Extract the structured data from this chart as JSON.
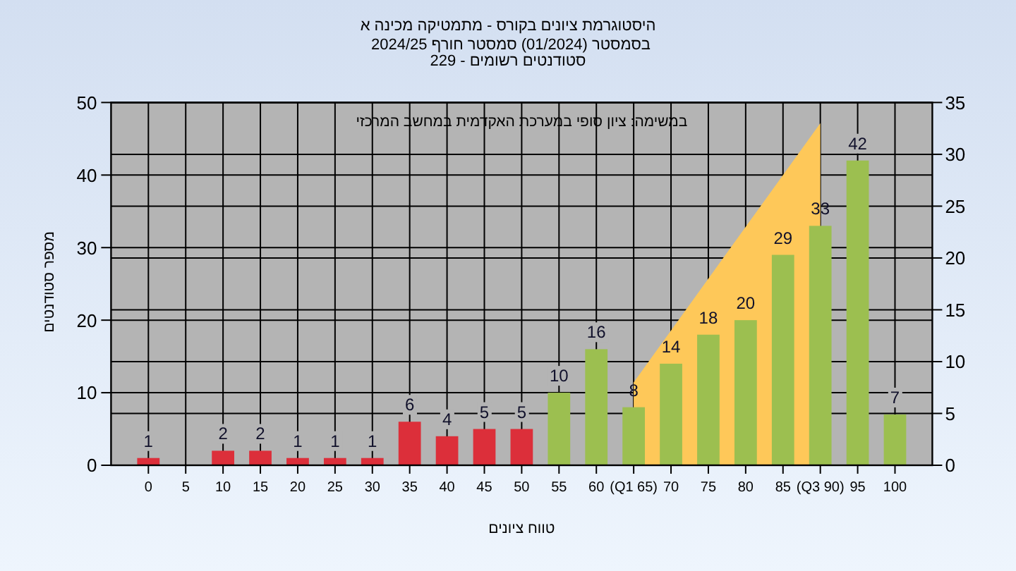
{
  "chart_data": {
    "type": "bar",
    "title": "היסטוגרמת ציונים בקורס - מתמטיקה מכינה א",
    "subtitle": "בסמסטר (01/2024) סמסטר חורף 2024/25",
    "annotations": [
      "סטודנטים רשומים - 229",
      "במשימה: ציון סופי במערכת האקדמית במחשב המרכזי"
    ],
    "xlabel": "טווח ציונים",
    "ylabel": "מספר סטודנטים",
    "x": [
      0,
      5,
      10,
      15,
      20,
      25,
      30,
      35,
      40,
      45,
      50,
      55,
      60,
      65,
      70,
      75,
      80,
      85,
      90,
      95,
      100
    ],
    "series": [
      {
        "type": "bar",
        "values": [
          1,
          null,
          2,
          2,
          1,
          1,
          1,
          6,
          4,
          5,
          5,
          10,
          16,
          8,
          14,
          18,
          20,
          29,
          33,
          42,
          7
        ],
        "value_labels": [
          "1",
          null,
          "2",
          "2",
          "1",
          "1",
          "1",
          "6",
          "4",
          "5",
          "5",
          "10",
          "16",
          "8",
          "14",
          "18",
          "20",
          "29",
          "33",
          "42",
          "7"
        ],
        "colors": [
          "#dc2f3a",
          null,
          "#dc2f3a",
          "#dc2f3a",
          "#dc2f3a",
          "#dc2f3a",
          "#dc2f3a",
          "#dc2f3a",
          "#dc2f3a",
          "#dc2f3a",
          "#dc2f3a",
          "#9cbf50",
          "#9cbf50",
          "#9cbf50",
          "#9cbf50",
          "#9cbf50",
          "#9cbf50",
          "#9cbf50",
          "#9cbf50",
          "#9cbf50",
          "#9cbf50"
        ]
      },
      {
        "type": "area",
        "axis": "y2",
        "x": [
          65,
          90
        ],
        "values": [
          8,
          33
        ],
        "color": "#fec859"
      }
    ],
    "xlim": [
      -5,
      105
    ],
    "xticks": [
      0,
      5,
      10,
      15,
      20,
      25,
      30,
      35,
      40,
      45,
      50,
      55,
      60,
      {
        "value": 65,
        "label": "(Q1 65)"
      },
      70,
      75,
      80,
      85,
      {
        "value": 90,
        "label": "(Q3 90)"
      },
      95,
      100
    ],
    "ylim": [
      0,
      50
    ],
    "yticks": [
      0,
      10,
      20,
      30,
      40,
      50
    ],
    "y2lim": [
      0,
      35
    ],
    "y2ticks": [
      0,
      5,
      10,
      15,
      20,
      25,
      30,
      35
    ],
    "grid": true
  }
}
